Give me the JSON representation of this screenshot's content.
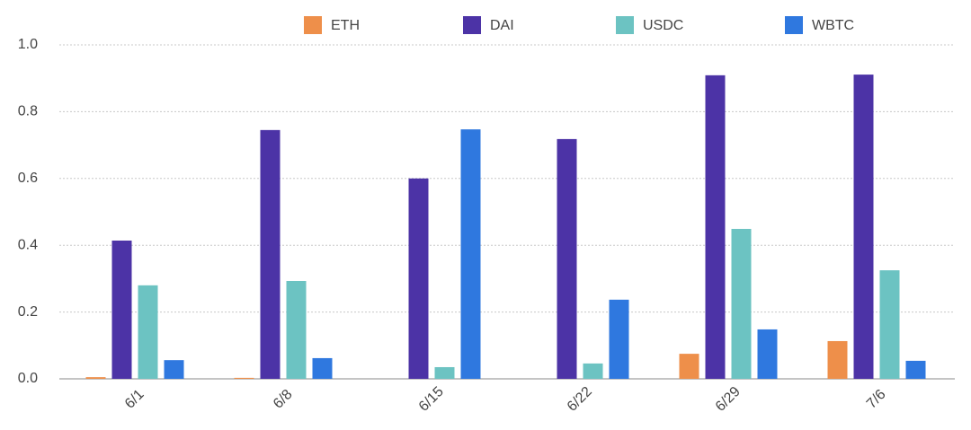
{
  "chart_data": {
    "type": "bar",
    "categories": [
      "6/1",
      "6/8",
      "6/15",
      "6/22",
      "6/29",
      "7/6"
    ],
    "series": [
      {
        "name": "ETH",
        "color": "#ee8f4a",
        "values": [
          0.005,
          0.003,
          0,
          0,
          0.075,
          0.113
        ]
      },
      {
        "name": "DAI",
        "color": "#4c33a6",
        "values": [
          0.414,
          0.745,
          0.6,
          0.718,
          0.909,
          0.911
        ]
      },
      {
        "name": "USDC",
        "color": "#6cc3c2",
        "values": [
          0.28,
          0.293,
          0.035,
          0.046,
          0.449,
          0.325
        ]
      },
      {
        "name": "WBTC",
        "color": "#2f78df",
        "values": [
          0.056,
          0.062,
          0.747,
          0.237,
          0.148,
          0.054
        ]
      }
    ],
    "ylim": [
      0,
      1
    ],
    "yticks": [
      {
        "value": 0,
        "label": "0.0"
      },
      0.2,
      0.4,
      0.6,
      0.8,
      {
        "value": 1,
        "label": "1.0"
      }
    ],
    "grid": true
  }
}
